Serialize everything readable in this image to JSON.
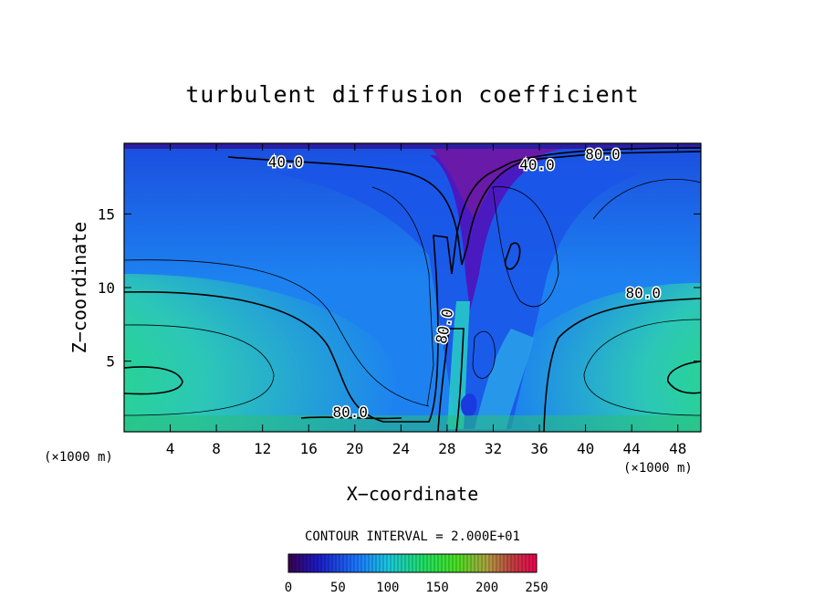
{
  "chart_data": {
    "type": "heatmap",
    "title": "turbulent diffusion coefficient",
    "xlabel": "X−coordinate",
    "ylabel": "Z−coordinate",
    "x_unit": "(×1000 m)",
    "x_unit_right": "(×1000 m)",
    "xlim": [
      0,
      50
    ],
    "ylim": [
      0.2,
      19.8
    ],
    "x_ticks": [
      4,
      8,
      12,
      16,
      20,
      24,
      28,
      32,
      36,
      40,
      44,
      48
    ],
    "y_ticks": [
      5,
      10,
      15
    ],
    "contour_interval_text": "CONTOUR INTERVAL = 2.000E+01",
    "contour_labels": [
      {
        "text": "40.0",
        "x": 14.0,
        "y": 18.2
      },
      {
        "text": "40.0",
        "x": 35.8,
        "y": 18.0
      },
      {
        "text": "80.0",
        "x": 41.5,
        "y": 18.7
      },
      {
        "text": "80.0",
        "x": 45.0,
        "y": 9.3
      },
      {
        "text": "80.0",
        "x": 28.2,
        "y": 7.3,
        "rotate": -78
      },
      {
        "text": "80.0",
        "x": 19.6,
        "y": 1.2
      }
    ],
    "colorbar": {
      "min": 0,
      "max": 250,
      "tick_values": [
        0,
        50,
        100,
        150,
        200,
        250
      ]
    },
    "grid": false,
    "legend": "none"
  }
}
